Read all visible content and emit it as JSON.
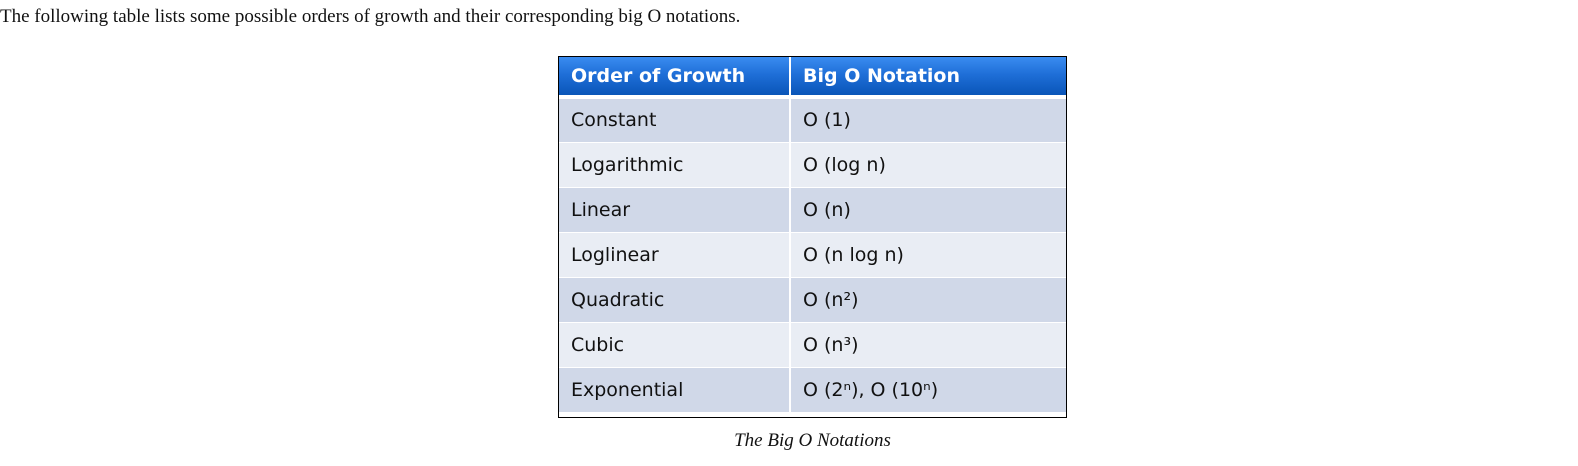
{
  "intro_text": "The following table lists some possible orders of growth and their corresponding big O notations.",
  "table": {
    "headers": [
      "Order of Growth",
      "Big O Notation"
    ],
    "rows": [
      [
        "Constant",
        "O (1)"
      ],
      [
        "Logarithmic",
        "O (log n)"
      ],
      [
        "Linear",
        "O (n)"
      ],
      [
        "Loglinear",
        "O (n log n)"
      ],
      [
        "Quadratic",
        "O (n²)"
      ],
      [
        "Cubic",
        "O (n³)"
      ],
      [
        "Exponential",
        "O (2ⁿ), O (10ⁿ)"
      ]
    ]
  },
  "caption": "The Big O Notations",
  "colors": {
    "header_top": "#3a8cf0",
    "header_bottom": "#0a55b8",
    "row_dark": "#d0d8e8",
    "row_light": "#e9edf4"
  }
}
